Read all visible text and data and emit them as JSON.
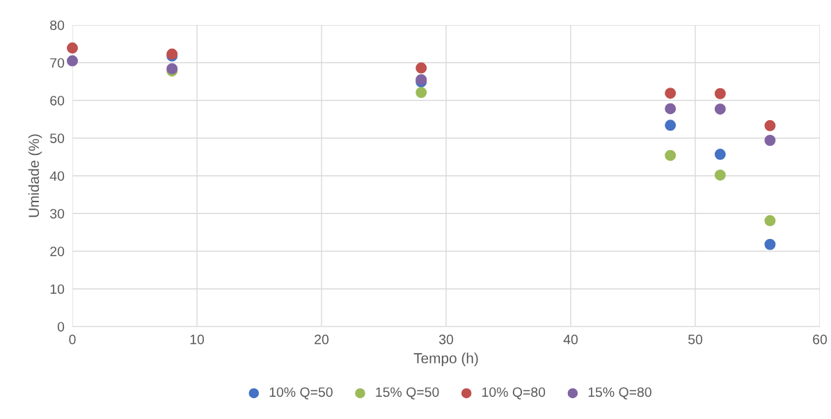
{
  "chart_data": {
    "type": "scatter",
    "xlabel": "Tempo (h)",
    "ylabel": "Umidade (%)",
    "xlim": [
      0,
      60
    ],
    "xticks": [
      0,
      10,
      20,
      30,
      40,
      50,
      60
    ],
    "ylim": [
      0,
      80
    ],
    "yticks": [
      0,
      10,
      20,
      30,
      40,
      50,
      60,
      70,
      80
    ],
    "grid": true,
    "legend": "bottom",
    "marker": "circle",
    "series": [
      {
        "name": "10% Q=50",
        "color": "#4472c4",
        "x": [
          8,
          28,
          48,
          52,
          56
        ],
        "values": [
          71.8,
          64.9,
          53.4,
          45.7,
          21.8
        ]
      },
      {
        "name": "15% Q=50",
        "color": "#9bbb59",
        "x": [
          8,
          28,
          48,
          52,
          56
        ],
        "values": [
          67.8,
          62.1,
          45.4,
          40.2,
          28.1
        ]
      },
      {
        "name": "10% Q=80",
        "color": "#c0504d",
        "x": [
          0,
          8,
          28,
          48,
          52,
          56
        ],
        "values": [
          73.9,
          72.3,
          68.6,
          61.9,
          61.8,
          53.3
        ]
      },
      {
        "name": "15% Q=80",
        "color": "#8064a2",
        "x": [
          0,
          8,
          28,
          48,
          52,
          56
        ],
        "values": [
          70.5,
          68.4,
          65.5,
          57.8,
          57.7,
          49.4
        ]
      }
    ]
  }
}
